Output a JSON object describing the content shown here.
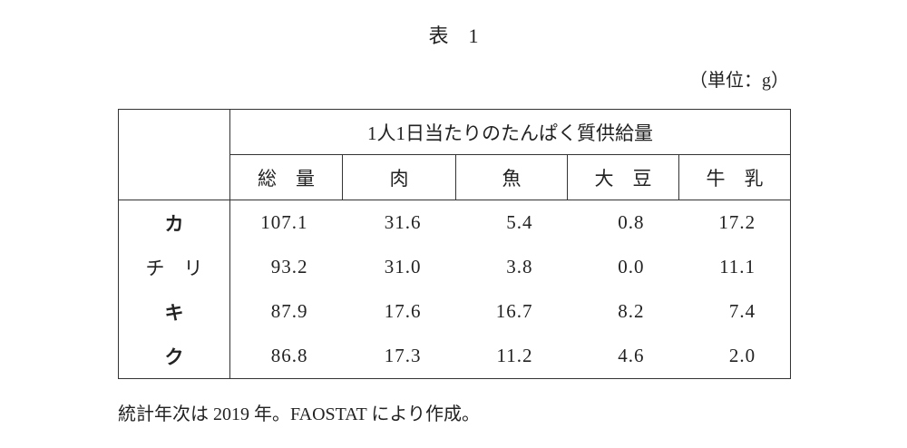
{
  "title": "表　1",
  "unit": "（単位：g）",
  "table": {
    "header_group": "1人1日当たりのたんぱく質供給量",
    "columns": [
      "総　量",
      "肉",
      "魚",
      "大　豆",
      "牛　乳"
    ],
    "rows": [
      [
        "カ",
        "107.1",
        "31.6",
        "5.4",
        "0.8",
        "17.2"
      ],
      [
        "チ　リ",
        "93.2",
        "31.0",
        "3.8",
        "0.0",
        "11.1"
      ],
      [
        "キ",
        "87.9",
        "17.6",
        "16.7",
        "8.2",
        "7.4"
      ],
      [
        "ク",
        "86.8",
        "17.3",
        "11.2",
        "4.6",
        "2.0"
      ]
    ]
  },
  "note": "統計年次は 2019 年。FAOSTAT により作成。"
}
